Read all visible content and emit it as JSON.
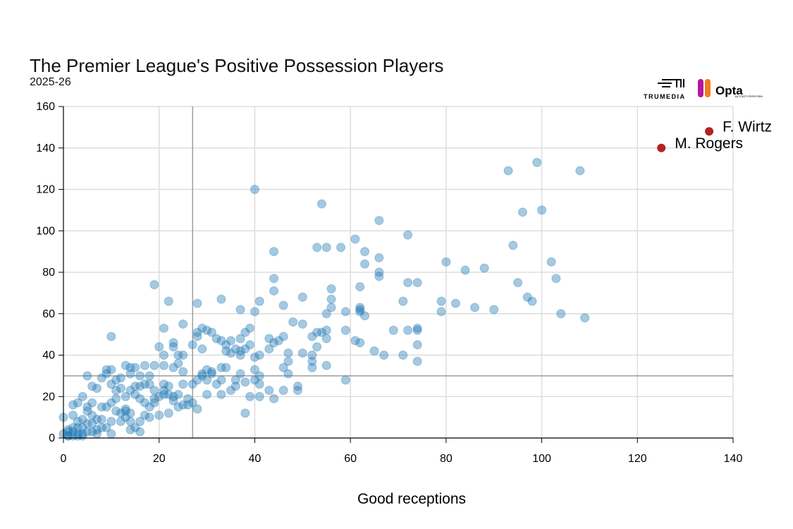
{
  "chart_data": {
    "type": "scatter",
    "title": "The Premier League's Positive Possession Players",
    "subtitle": "2025-26",
    "xlabel": "Good receptions",
    "ylabel": "",
    "xlim": [
      0,
      140
    ],
    "ylim": [
      0,
      160
    ],
    "xticks": [
      0,
      20,
      40,
      60,
      80,
      100,
      120,
      140
    ],
    "yticks": [
      0,
      20,
      40,
      60,
      80,
      100,
      120,
      140,
      160
    ],
    "grid": true,
    "reference_lines": {
      "x": 27,
      "y": 30
    },
    "colors": {
      "points": "#1f77b4",
      "highlight": "#b22222",
      "grid": "#dddddd",
      "reference": "#888888"
    },
    "highlighted": [
      {
        "label": "F. Wirtz",
        "x": 135,
        "y": 148
      },
      {
        "label": "M. Rogers",
        "x": 125,
        "y": 140
      }
    ],
    "points": [
      [
        93,
        129
      ],
      [
        99,
        133
      ],
      [
        108,
        129
      ],
      [
        40,
        120
      ],
      [
        54,
        113
      ],
      [
        96,
        109
      ],
      [
        100,
        110
      ],
      [
        66,
        105
      ],
      [
        72,
        98
      ],
      [
        61,
        96
      ],
      [
        55,
        92
      ],
      [
        53,
        92
      ],
      [
        58,
        92
      ],
      [
        63,
        90
      ],
      [
        44,
        90
      ],
      [
        94,
        93
      ],
      [
        63,
        84
      ],
      [
        66,
        87
      ],
      [
        66,
        80
      ],
      [
        66,
        78
      ],
      [
        80,
        85
      ],
      [
        84,
        81
      ],
      [
        88,
        82
      ],
      [
        102,
        85
      ],
      [
        103,
        77
      ],
      [
        19,
        74
      ],
      [
        44,
        77
      ],
      [
        56,
        72
      ],
      [
        44,
        71
      ],
      [
        72,
        75
      ],
      [
        74,
        75
      ],
      [
        95,
        75
      ],
      [
        97,
        68
      ],
      [
        98,
        66
      ],
      [
        104,
        60
      ],
      [
        109,
        58
      ],
      [
        90,
        62
      ],
      [
        86,
        63
      ],
      [
        82,
        65
      ],
      [
        79,
        66
      ],
      [
        79,
        61
      ],
      [
        71,
        66
      ],
      [
        62,
        73
      ],
      [
        56,
        67
      ],
      [
        56,
        63
      ],
      [
        59,
        61
      ],
      [
        62,
        63
      ],
      [
        62,
        62
      ],
      [
        62,
        61
      ],
      [
        63,
        59
      ],
      [
        69,
        52
      ],
      [
        72,
        52
      ],
      [
        74,
        52
      ],
      [
        74,
        53
      ],
      [
        74,
        45
      ],
      [
        74,
        37
      ],
      [
        71,
        40
      ],
      [
        67,
        40
      ],
      [
        65,
        42
      ],
      [
        62,
        46
      ],
      [
        61,
        47
      ],
      [
        59,
        52
      ],
      [
        55,
        52
      ],
      [
        55,
        48
      ],
      [
        53,
        51
      ],
      [
        52,
        49
      ],
      [
        53,
        44
      ],
      [
        54,
        51
      ],
      [
        55,
        60
      ],
      [
        50,
        68
      ],
      [
        46,
        64
      ],
      [
        40,
        61
      ],
      [
        41,
        66
      ],
      [
        37,
        62
      ],
      [
        33,
        67
      ],
      [
        28,
        65
      ],
      [
        22,
        66
      ],
      [
        21,
        53
      ],
      [
        25,
        55
      ],
      [
        10,
        49
      ],
      [
        48,
        56
      ],
      [
        50,
        55
      ],
      [
        39,
        53
      ],
      [
        38,
        51
      ],
      [
        46,
        49
      ],
      [
        43,
        48
      ],
      [
        44,
        46
      ],
      [
        45,
        47
      ],
      [
        37,
        48
      ],
      [
        35,
        47
      ],
      [
        32,
        48
      ],
      [
        31,
        51
      ],
      [
        29,
        53
      ],
      [
        28,
        51
      ],
      [
        28,
        49
      ],
      [
        30,
        52
      ],
      [
        33,
        47
      ],
      [
        34,
        45
      ],
      [
        39,
        45
      ],
      [
        38,
        43
      ],
      [
        37,
        42
      ],
      [
        35,
        41
      ],
      [
        34,
        42
      ],
      [
        36,
        43
      ],
      [
        37,
        40
      ],
      [
        40,
        39
      ],
      [
        43,
        43
      ],
      [
        47,
        41
      ],
      [
        50,
        41
      ],
      [
        52,
        40
      ],
      [
        52,
        37
      ],
      [
        52,
        34
      ],
      [
        55,
        35
      ],
      [
        59,
        28
      ],
      [
        46,
        34
      ],
      [
        47,
        31
      ],
      [
        47,
        37
      ],
      [
        41,
        40
      ],
      [
        29,
        43
      ],
      [
        27,
        45
      ],
      [
        23,
        46
      ],
      [
        23,
        44
      ],
      [
        20,
        44
      ],
      [
        25,
        40
      ],
      [
        21,
        40
      ],
      [
        24,
        40
      ],
      [
        24,
        36
      ],
      [
        23,
        34
      ],
      [
        21,
        35
      ],
      [
        19,
        35
      ],
      [
        34,
        34
      ],
      [
        33,
        34
      ],
      [
        31,
        32
      ],
      [
        31,
        31
      ],
      [
        30,
        33
      ],
      [
        29,
        31
      ],
      [
        29,
        30
      ],
      [
        37,
        31
      ],
      [
        40,
        33
      ],
      [
        41,
        30
      ],
      [
        40,
        28
      ],
      [
        38,
        27
      ],
      [
        36,
        28
      ],
      [
        36,
        25
      ],
      [
        35,
        23
      ],
      [
        33,
        28
      ],
      [
        32,
        26
      ],
      [
        30,
        28
      ],
      [
        33,
        21
      ],
      [
        30,
        21
      ],
      [
        28,
        28
      ],
      [
        41,
        26
      ],
      [
        43,
        23
      ],
      [
        44,
        19
      ],
      [
        41,
        20
      ],
      [
        39,
        20
      ],
      [
        38,
        12
      ],
      [
        46,
        23
      ],
      [
        49,
        23
      ],
      [
        49,
        25
      ],
      [
        28,
        14
      ],
      [
        27,
        26
      ],
      [
        27,
        17
      ],
      [
        26,
        16
      ],
      [
        26,
        19
      ],
      [
        25,
        16
      ],
      [
        24,
        15
      ],
      [
        23,
        18
      ],
      [
        23,
        20
      ],
      [
        22,
        21
      ],
      [
        22,
        25
      ],
      [
        21,
        23
      ],
      [
        21,
        26
      ],
      [
        21,
        21
      ],
      [
        20,
        20
      ],
      [
        19,
        19
      ],
      [
        19,
        17
      ],
      [
        20,
        11
      ],
      [
        22,
        12
      ],
      [
        18,
        30
      ],
      [
        17,
        26
      ],
      [
        16,
        25
      ],
      [
        16,
        30
      ],
      [
        15,
        34
      ],
      [
        14,
        34
      ],
      [
        13,
        35
      ],
      [
        14,
        31
      ],
      [
        12,
        29
      ],
      [
        11,
        28
      ],
      [
        10,
        26
      ],
      [
        9,
        33
      ],
      [
        9,
        31
      ],
      [
        10,
        33
      ],
      [
        8,
        29
      ],
      [
        5,
        30
      ],
      [
        7,
        24
      ],
      [
        6,
        25
      ],
      [
        4,
        20
      ],
      [
        3,
        17
      ],
      [
        2,
        16
      ],
      [
        5,
        15
      ],
      [
        6,
        17
      ],
      [
        8,
        15
      ],
      [
        9,
        15
      ],
      [
        10,
        17
      ],
      [
        11,
        19
      ],
      [
        11,
        23
      ],
      [
        12,
        24
      ],
      [
        13,
        20
      ],
      [
        14,
        23
      ],
      [
        15,
        21
      ],
      [
        15,
        25
      ],
      [
        16,
        19
      ],
      [
        17,
        17
      ],
      [
        18,
        15
      ],
      [
        17,
        11
      ],
      [
        16,
        8
      ],
      [
        15,
        5
      ],
      [
        14,
        8
      ],
      [
        13,
        10
      ],
      [
        13,
        14
      ],
      [
        12,
        12
      ],
      [
        11,
        13
      ],
      [
        10,
        8
      ],
      [
        10,
        2
      ],
      [
        8,
        5
      ],
      [
        7,
        4
      ],
      [
        7,
        9
      ],
      [
        6,
        7
      ],
      [
        5,
        3
      ],
      [
        4,
        5
      ],
      [
        4,
        9
      ],
      [
        3,
        8
      ],
      [
        2,
        5
      ],
      [
        2,
        3
      ],
      [
        1,
        1
      ],
      [
        1,
        4
      ],
      [
        0,
        2
      ],
      [
        0,
        10
      ],
      [
        1,
        1
      ],
      [
        2,
        1
      ],
      [
        3,
        2
      ],
      [
        3,
        5
      ],
      [
        4,
        2
      ],
      [
        5,
        7
      ],
      [
        6,
        3
      ],
      [
        7,
        2
      ],
      [
        8,
        9
      ],
      [
        9,
        5
      ],
      [
        12,
        8
      ],
      [
        14,
        4
      ],
      [
        16,
        3
      ],
      [
        18,
        10
      ],
      [
        14,
        12
      ],
      [
        18,
        26
      ],
      [
        19,
        23
      ],
      [
        17,
        35
      ],
      [
        25,
        32
      ],
      [
        25,
        26
      ],
      [
        24,
        21
      ],
      [
        13,
        13
      ],
      [
        5,
        13
      ],
      [
        6,
        11
      ],
      [
        2,
        11
      ],
      [
        1,
        3
      ],
      [
        3,
        1
      ],
      [
        4,
        1
      ]
    ]
  },
  "logos": {
    "trumedia": "TRUMEDIA",
    "opta": "Opta",
    "opta_sub": "by STATS PERFORM"
  }
}
